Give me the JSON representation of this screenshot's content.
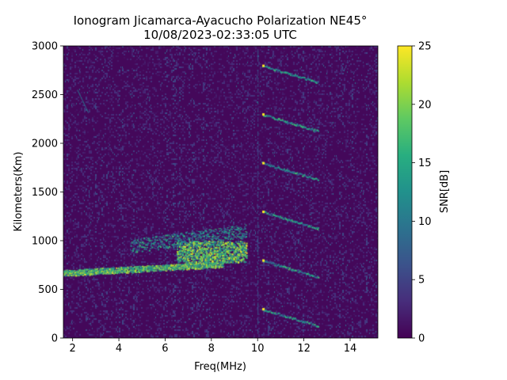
{
  "chart_data": {
    "type": "heatmap",
    "title": "Ionogram Jicamarca-Ayacucho Polarization NE45°",
    "subtitle": "10/08/2023-02:33:05 UTC",
    "xlabel": "Freq(MHz)",
    "ylabel": "Kilometers(Km)",
    "xlim": [
      1.6,
      15.2
    ],
    "ylim": [
      0,
      3000
    ],
    "xticks": [
      2,
      4,
      6,
      8,
      10,
      12,
      14
    ],
    "yticks": [
      0,
      500,
      1000,
      1500,
      2000,
      2500,
      3000
    ],
    "colorbar": {
      "label": "SNR[dB]",
      "range": [
        0,
        25
      ],
      "ticks": [
        0,
        5,
        10,
        15,
        20,
        25
      ],
      "colormap": "viridis"
    },
    "features": [
      {
        "name": "F-layer trace lower",
        "freq_range": [
          1.6,
          8.5
        ],
        "height_km": [
          670,
          760
        ]
      },
      {
        "name": "F-layer trace upper",
        "freq_range": [
          4.5,
          9.5
        ],
        "height_km": [
          950,
          1100
        ]
      },
      {
        "name": "F-layer spread echoes",
        "freq_range": [
          6.5,
          9.5
        ],
        "height_km": [
          780,
          1000
        ]
      },
      {
        "name": "interference line",
        "freq": 10.0,
        "height_km": [
          0,
          3000
        ]
      },
      {
        "name": "oblique echo 1",
        "freq_range": [
          10.2,
          12.6
        ],
        "height_km": [
          300,
          130
        ]
      },
      {
        "name": "oblique echo 2",
        "freq_range": [
          10.2,
          12.6
        ],
        "height_km": [
          800,
          630
        ]
      },
      {
        "name": "oblique echo 3",
        "freq_range": [
          10.2,
          12.6
        ],
        "height_km": [
          1300,
          1130
        ]
      },
      {
        "name": "oblique echo 4",
        "freq_range": [
          10.2,
          12.6
        ],
        "height_km": [
          1800,
          1630
        ]
      },
      {
        "name": "oblique echo 5",
        "freq_range": [
          10.2,
          12.6
        ],
        "height_km": [
          2300,
          2130
        ]
      },
      {
        "name": "oblique echo 6",
        "freq_range": [
          10.2,
          12.6
        ],
        "height_km": [
          2800,
          2630
        ]
      }
    ]
  }
}
